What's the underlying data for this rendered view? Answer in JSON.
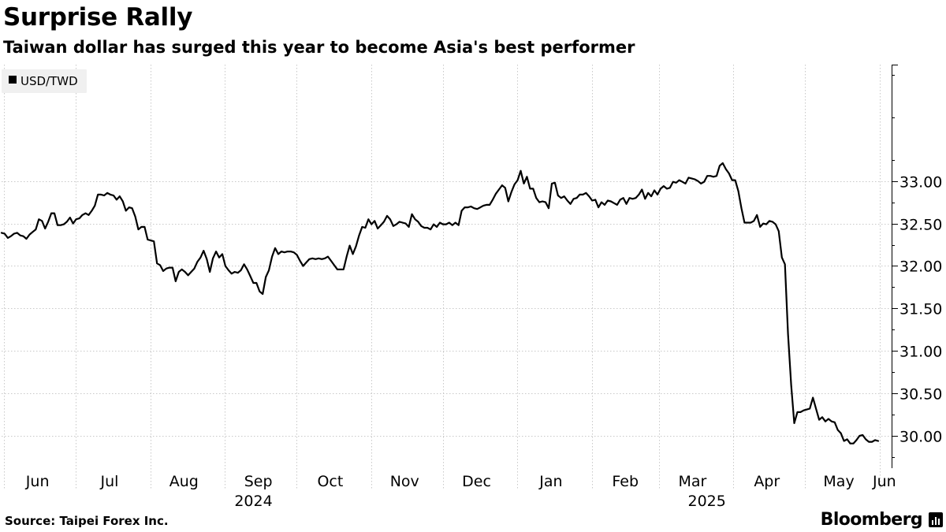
{
  "title": "Surprise Rally",
  "subtitle": "Taiwan dollar has surged this year to become Asia's best performer",
  "source": "Source: Taipei Forex Inc.",
  "brand": "Bloomberg",
  "colors": {
    "line": "#000000",
    "grid": "#c8c8c8",
    "legend_bg": "#f0f0f0"
  },
  "chart_data": {
    "type": "line",
    "series": [
      {
        "name": "USD/TWD",
        "values": [
          32.39,
          32.38,
          32.33,
          32.35,
          32.38,
          32.39,
          32.36,
          32.35,
          32.32,
          32.37,
          32.4,
          32.43,
          32.55,
          32.53,
          32.44,
          32.52,
          32.62,
          32.62,
          32.48,
          32.48,
          32.49,
          32.52,
          32.57,
          32.5,
          32.55,
          32.56,
          32.6,
          32.62,
          32.6,
          32.65,
          32.71,
          32.84,
          32.84,
          32.83,
          32.86,
          32.84,
          32.83,
          32.78,
          32.82,
          32.76,
          32.65,
          32.69,
          32.68,
          32.58,
          32.43,
          32.46,
          32.46,
          32.31,
          32.3,
          32.29,
          32.03,
          32.01,
          31.94,
          31.97,
          31.98,
          31.98,
          31.82,
          31.93,
          31.96,
          31.93,
          31.89,
          31.93,
          31.97,
          32.05,
          32.1,
          32.18,
          32.08,
          31.93,
          32.09,
          32.17,
          32.1,
          32.14,
          32.0,
          31.95,
          31.91,
          31.93,
          31.92,
          31.95,
          32.02,
          31.96,
          31.88,
          31.8,
          31.8,
          31.7,
          31.67,
          31.87,
          31.95,
          32.11,
          32.21,
          32.14,
          32.17,
          32.16,
          32.17,
          32.17,
          32.16,
          32.13,
          32.06,
          32.0,
          32.04,
          32.08,
          32.09,
          32.08,
          32.09,
          32.08,
          32.09,
          32.11,
          32.06,
          32.01,
          31.96,
          31.96,
          31.96,
          32.11,
          32.24,
          32.14,
          32.23,
          32.36,
          32.46,
          32.45,
          32.55,
          32.49,
          32.53,
          32.44,
          32.48,
          32.52,
          32.59,
          32.55,
          32.47,
          32.49,
          32.52,
          32.51,
          32.5,
          32.46,
          32.61,
          32.55,
          32.52,
          32.47,
          32.45,
          32.45,
          32.43,
          32.49,
          32.46,
          32.51,
          32.49,
          32.49,
          32.51,
          32.48,
          32.51,
          32.48,
          32.65,
          32.69,
          32.69,
          32.7,
          32.68,
          32.67,
          32.69,
          32.71,
          32.72,
          32.72,
          32.78,
          32.85,
          32.9,
          32.95,
          32.92,
          32.76,
          32.87,
          32.96,
          33.01,
          33.12,
          32.97,
          33.05,
          32.91,
          32.91,
          32.8,
          32.75,
          32.76,
          32.75,
          32.68,
          32.97,
          32.98,
          32.83,
          32.8,
          32.82,
          32.77,
          32.73,
          32.79,
          32.8,
          32.84,
          32.84,
          32.86,
          32.82,
          32.77,
          32.78,
          32.69,
          32.75,
          32.72,
          32.77,
          32.76,
          32.74,
          32.72,
          32.78,
          32.8,
          32.73,
          32.8,
          32.79,
          32.8,
          32.84,
          32.9,
          32.79,
          32.86,
          32.82,
          32.89,
          32.84,
          32.91,
          32.94,
          32.91,
          32.92,
          32.99,
          32.98,
          33.01,
          32.99,
          32.97,
          33.04,
          33.03,
          33.02,
          33.0,
          32.97,
          32.99,
          33.06,
          33.06,
          33.05,
          33.06,
          33.18,
          33.21,
          33.14,
          33.09,
          33.01,
          33.01,
          32.88,
          32.68,
          32.51,
          32.51,
          32.51,
          32.53,
          32.6,
          32.46,
          32.5,
          32.49,
          32.53,
          32.52,
          32.49,
          32.41,
          32.1,
          32.02,
          31.2,
          30.6,
          30.15,
          30.28,
          30.28,
          30.3,
          30.31,
          30.32,
          30.45,
          30.32,
          30.19,
          30.22,
          30.17,
          30.2,
          30.17,
          30.16,
          30.07,
          30.03,
          29.94,
          29.96,
          29.91,
          29.91,
          29.95,
          30.0,
          30.01,
          29.96,
          29.93,
          29.93,
          29.95,
          29.94
        ]
      }
    ],
    "x_start": "2024-05-31",
    "x_end": "2025-06-06",
    "x_labels": [
      "Jun",
      "Jul",
      "Aug",
      "Sep",
      "Oct",
      "Nov",
      "Dec",
      "Jan",
      "Feb",
      "Mar",
      "Apr",
      "May",
      "Jun"
    ],
    "x_label_dates": [
      "2024-06-15",
      "2024-07-15",
      "2024-08-15",
      "2024-09-15",
      "2024-10-15",
      "2024-11-15",
      "2024-12-15",
      "2025-01-15",
      "2025-02-15",
      "2025-03-15",
      "2025-04-15",
      "2025-05-15",
      "2025-06-03"
    ],
    "x_month_boundaries": [
      "2024-06-01",
      "2024-07-01",
      "2024-08-01",
      "2024-09-01",
      "2024-10-01",
      "2024-11-01",
      "2024-12-01",
      "2025-01-01",
      "2025-02-01",
      "2025-03-01",
      "2025-04-01",
      "2025-05-01",
      "2025-06-01"
    ],
    "year_labels": [
      {
        "label": "2024",
        "date": "2024-09-13"
      },
      {
        "label": "2025",
        "date": "2025-03-21"
      }
    ],
    "y_ticks": [
      "30.00",
      "30.50",
      "31.00",
      "31.50",
      "32.00",
      "32.50",
      "33.00"
    ],
    "y_tick_values": [
      30.0,
      30.5,
      31.0,
      31.5,
      32.0,
      32.5,
      33.0
    ],
    "ylim": [
      29.62,
      34.37
    ],
    "y_axis_side": "right",
    "grid": true,
    "legend_position": "top-left"
  }
}
